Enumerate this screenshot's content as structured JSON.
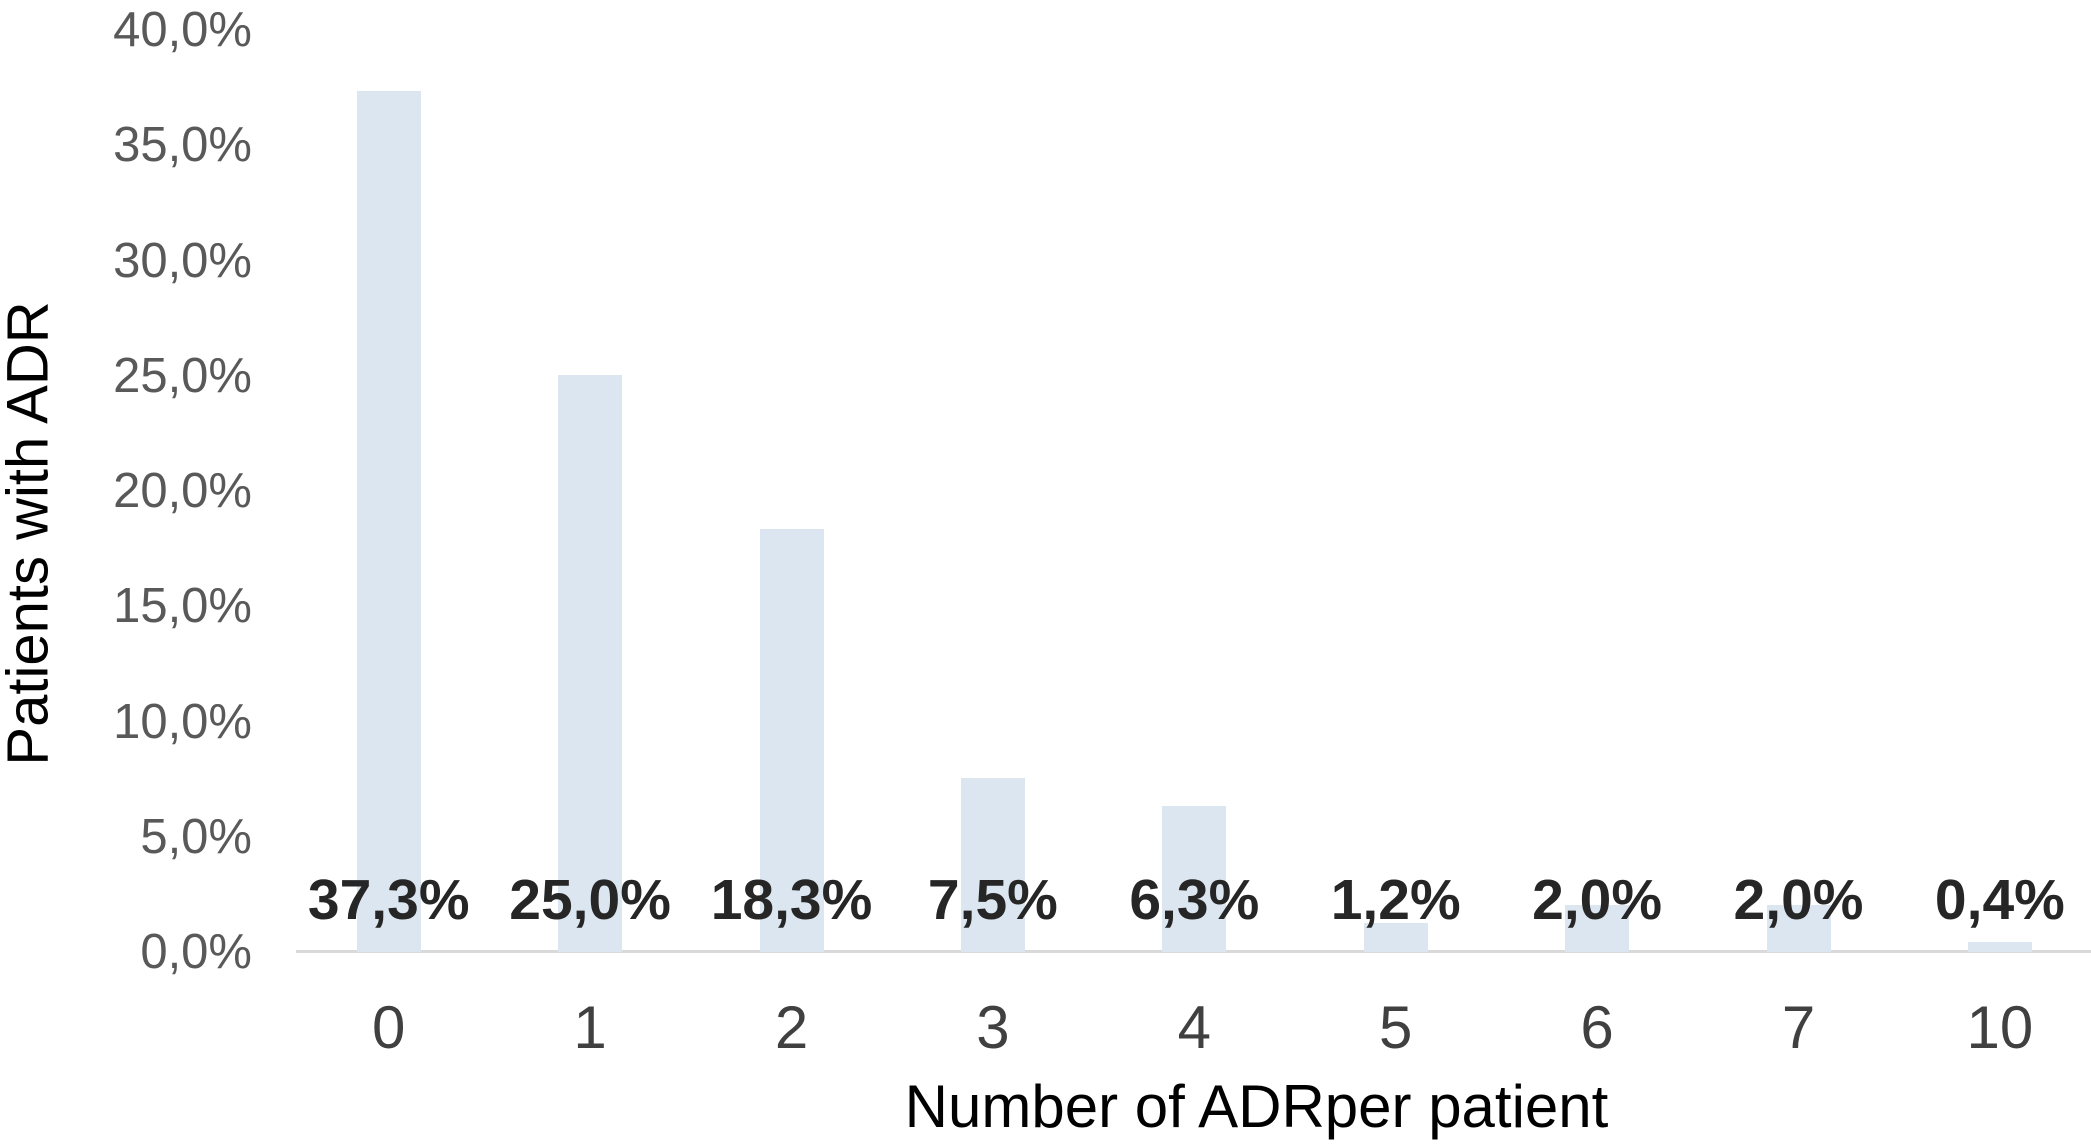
{
  "chart_data": {
    "type": "bar",
    "title": "",
    "xlabel": "Number of ADRper patient",
    "ylabel": "Patients with ADR",
    "categories": [
      "0",
      "1",
      "2",
      "3",
      "4",
      "5",
      "6",
      "7",
      "10"
    ],
    "values": [
      37.3,
      25.0,
      18.3,
      7.5,
      6.3,
      1.2,
      2.0,
      2.0,
      0.4
    ],
    "value_labels": [
      "37,3%",
      "25,0%",
      "18,3%",
      "7,5%",
      "6,3%",
      "1,2%",
      "2,0%",
      "2,0%",
      "0,4%"
    ],
    "y_tick_values": [
      0,
      5,
      10,
      15,
      20,
      25,
      30,
      35,
      40
    ],
    "y_tick_labels": [
      "0,0%",
      "5,0%",
      "10,0%",
      "15,0%",
      "20,0%",
      "25,0%",
      "30,0%",
      "35,0%",
      "40,0%"
    ],
    "ylim": [
      0,
      40
    ],
    "grid": false,
    "legend_position": "none",
    "decimal_separator": ",",
    "colors": {
      "bar_fill": "#dce6f0",
      "axis_line": "#d9d9d9",
      "y_tick_text": "#595959",
      "x_tick_text": "#404040",
      "data_label_text": "#262626",
      "axis_title_text": "#000000",
      "background": "#ffffff"
    }
  }
}
